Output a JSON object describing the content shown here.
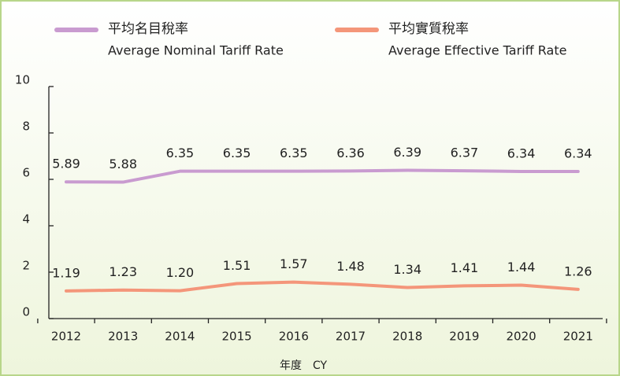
{
  "chart_data": {
    "type": "line",
    "categories": [
      "2012",
      "2013",
      "2014",
      "2015",
      "2016",
      "2017",
      "2018",
      "2019",
      "2020",
      "2021"
    ],
    "series": [
      {
        "name": "平均名目稅率",
        "name_en": "Average Nominal Tariff Rate",
        "color": "#c99bd0",
        "values": [
          5.89,
          5.88,
          6.35,
          6.35,
          6.35,
          6.36,
          6.39,
          6.37,
          6.34,
          6.34
        ],
        "value_labels": [
          "5.89",
          "5.88",
          "6.35",
          "6.35",
          "6.35",
          "6.36",
          "6.39",
          "6.37",
          "6.34",
          "6.34"
        ]
      },
      {
        "name": "平均實質稅率",
        "name_en": "Average Effective Tariff Rate",
        "color": "#f4967a",
        "values": [
          1.19,
          1.23,
          1.2,
          1.51,
          1.57,
          1.48,
          1.34,
          1.41,
          1.44,
          1.26
        ],
        "value_labels": [
          "1.19",
          "1.23",
          "1.20",
          "1.51",
          "1.57",
          "1.48",
          "1.34",
          "1.41",
          "1.44",
          "1.26"
        ]
      }
    ],
    "xlabel": "年度　CY",
    "ylim": [
      0,
      10
    ],
    "yticks": [
      0,
      2,
      4,
      6,
      8,
      10
    ],
    "grid": false
  }
}
